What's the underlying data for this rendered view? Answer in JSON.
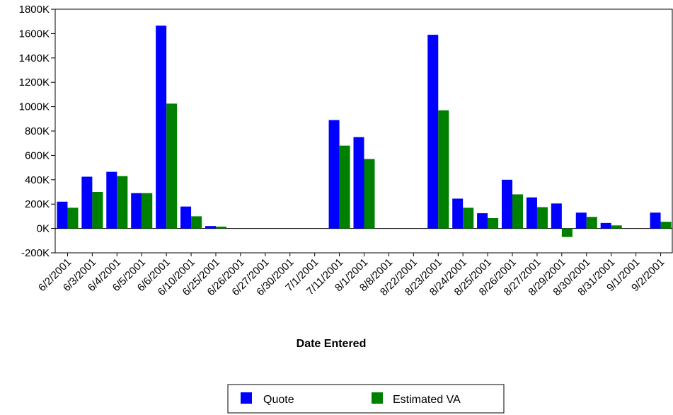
{
  "chart_data": {
    "type": "bar",
    "title": "",
    "xlabel": "Date Entered",
    "ylabel": "",
    "ylim": [
      -200,
      1800
    ],
    "y_ticks": [
      -200,
      0,
      200,
      400,
      600,
      800,
      1000,
      1200,
      1400,
      1600,
      1800
    ],
    "y_tick_labels": [
      "-200K",
      "0K",
      "200K",
      "400K",
      "600K",
      "800K",
      "1000K",
      "1200K",
      "1400K",
      "1600K",
      "1800K"
    ],
    "value_unit": "K",
    "grid": false,
    "legend_position": "bottom-center",
    "categories": [
      "6/2/2001",
      "6/3/2001",
      "6/4/2001",
      "6/5/2001",
      "6/6/2001",
      "6/10/2001",
      "6/25/2001",
      "6/26/2001",
      "6/27/2001",
      "6/30/2001",
      "7/1/2001",
      "7/11/2001",
      "8/1/2001",
      "8/8/2001",
      "8/22/2001",
      "8/23/2001",
      "8/24/2001",
      "8/25/2001",
      "8/26/2001",
      "8/27/2001",
      "8/29/2001",
      "8/30/2001",
      "8/31/2001",
      "9/1/2001",
      "9/2/2001"
    ],
    "series": [
      {
        "name": "Quote",
        "color": "#0000ff",
        "values": [
          220,
          425,
          465,
          290,
          1665,
          180,
          20,
          0,
          0,
          0,
          0,
          890,
          750,
          0,
          0,
          1590,
          245,
          125,
          400,
          255,
          205,
          130,
          45,
          0,
          130
        ]
      },
      {
        "name": "Estimated VA",
        "color": "#008000",
        "values": [
          170,
          300,
          430,
          290,
          1025,
          100,
          15,
          0,
          0,
          0,
          0,
          680,
          570,
          0,
          0,
          970,
          170,
          85,
          280,
          175,
          -70,
          95,
          25,
          0,
          55
        ]
      }
    ]
  }
}
